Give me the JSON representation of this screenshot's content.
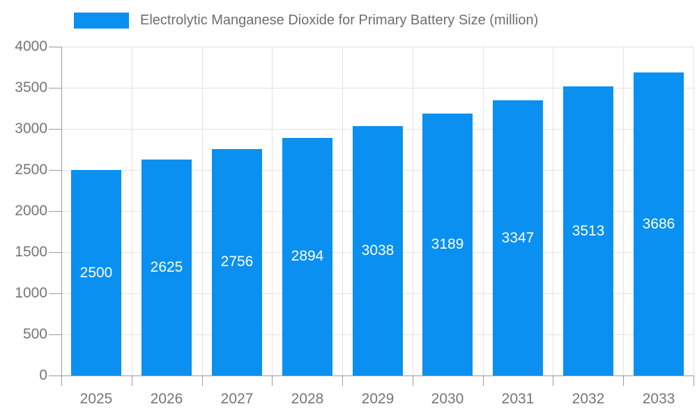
{
  "chart_data": {
    "type": "bar",
    "title": "Electrolytic Manganese Dioxide for Primary Battery Size (million)",
    "categories": [
      "2025",
      "2026",
      "2027",
      "2028",
      "2029",
      "2030",
      "2031",
      "2032",
      "2033"
    ],
    "values": [
      2500,
      2625,
      2756,
      2894,
      3038,
      3189,
      3347,
      3513,
      3686
    ],
    "xlabel": "",
    "ylabel": "",
    "ylim": [
      0,
      4000
    ],
    "ytick_step": 500,
    "ytick_labels": [
      "0",
      "500",
      "1000",
      "1500",
      "2000",
      "2500",
      "3000",
      "3500",
      "4000"
    ],
    "grid": true,
    "legend_position": "top",
    "value_labels_inside_bars": true
  },
  "legend": {
    "series_label": "Electrolytic Manganese Dioxide for Primary Battery Size (million)"
  },
  "colors": {
    "bar": "#0a90f0",
    "bar_value_text": "#ffffff",
    "axis_line": "#9b9b9b",
    "gridline": "#e2e2e2",
    "axis_text": "#757575",
    "legend_text": "#6e6e6e",
    "background": "#ffffff"
  }
}
